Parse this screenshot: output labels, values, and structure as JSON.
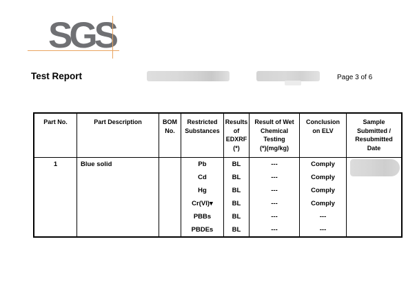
{
  "header": {
    "logo": "SGS",
    "title": "Test Report",
    "page_indicator": "Page 3 of 6"
  },
  "table": {
    "headers": [
      "Part No.",
      "Part Description",
      "BOM\nNo.",
      "Restricted\nSubstances",
      "Results\nof\nEDXRF\n(*)",
      "Result of Wet\nChemical\nTesting\n(*)(mg/kg)",
      "Conclusion\non ELV",
      "Sample\nSubmitted /\nResubmitted\nDate"
    ],
    "row": {
      "part_no": "1",
      "part_description": "Blue solid",
      "bom_no": "",
      "substances": [
        "Pb",
        "Cd",
        "Hg",
        "Cr(VI)▾",
        "PBBs",
        "PBDEs"
      ],
      "edxrf": [
        "BL",
        "BL",
        "BL",
        "BL",
        "BL",
        "BL"
      ],
      "wet_chemical": [
        "---",
        "---",
        "---",
        "---",
        "---",
        "---"
      ],
      "conclusion": [
        "Comply",
        "Comply",
        "Comply",
        "Comply",
        "---",
        "---"
      ]
    }
  },
  "colors": {
    "logo_gray": "#6f7073",
    "crop_mark_orange": "#e9a45f",
    "redaction_gray": "#d6d6d6",
    "table_border": "#000000"
  }
}
